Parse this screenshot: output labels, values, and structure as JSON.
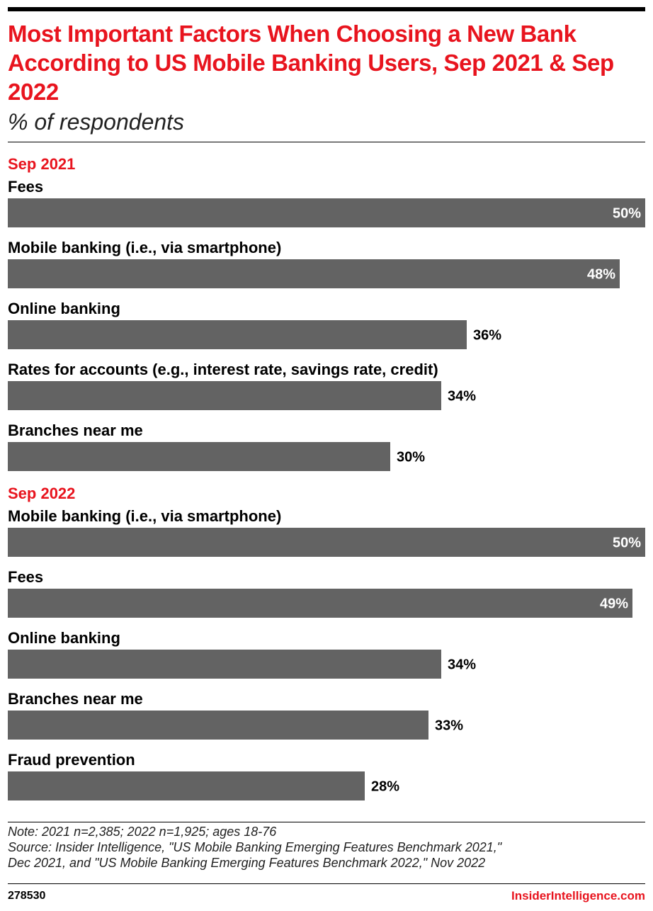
{
  "header": {
    "title": "Most Important Factors When Choosing a New Bank According to US Mobile Banking Users, Sep 2021 & Sep 2022",
    "subtitle": "% of respondents"
  },
  "colors": {
    "accent": "#e8141e",
    "bar": "#636363",
    "text": "#000000"
  },
  "chart_data": [
    {
      "type": "bar",
      "orientation": "horizontal",
      "title": "Sep 2021",
      "categories": [
        "Fees",
        "Mobile banking (i.e., via smartphone)",
        "Online banking",
        "Rates for accounts (e.g., interest rate, savings rate, credit)",
        "Branches near me"
      ],
      "values": [
        50,
        48,
        36,
        34,
        30
      ],
      "labels": [
        "50%",
        "48%",
        "36%",
        "34%",
        "30%"
      ],
      "xlim": [
        0,
        50
      ],
      "grid": false,
      "legend": "none"
    },
    {
      "type": "bar",
      "orientation": "horizontal",
      "title": "Sep 2022",
      "categories": [
        "Mobile banking (i.e., via smartphone)",
        "Fees",
        "Online banking",
        "Branches near me",
        "Fraud prevention"
      ],
      "values": [
        50,
        49,
        34,
        33,
        28
      ],
      "labels": [
        "50%",
        "49%",
        "34%",
        "33%",
        "28%"
      ],
      "xlim": [
        0,
        50
      ],
      "grid": false,
      "legend": "none"
    }
  ],
  "footer": {
    "note": "Note: 2021 n=2,385; 2022 n=1,925; ages 18-76",
    "source_line1": "Source: Insider Intelligence, \"US Mobile Banking Emerging Features Benchmark 2021,\"",
    "source_line2": "Dec 2021, and \"US Mobile Banking Emerging Features Benchmark 2022,\" Nov 2022",
    "chart_id": "278530",
    "brand": "InsiderIntelligence.com"
  }
}
